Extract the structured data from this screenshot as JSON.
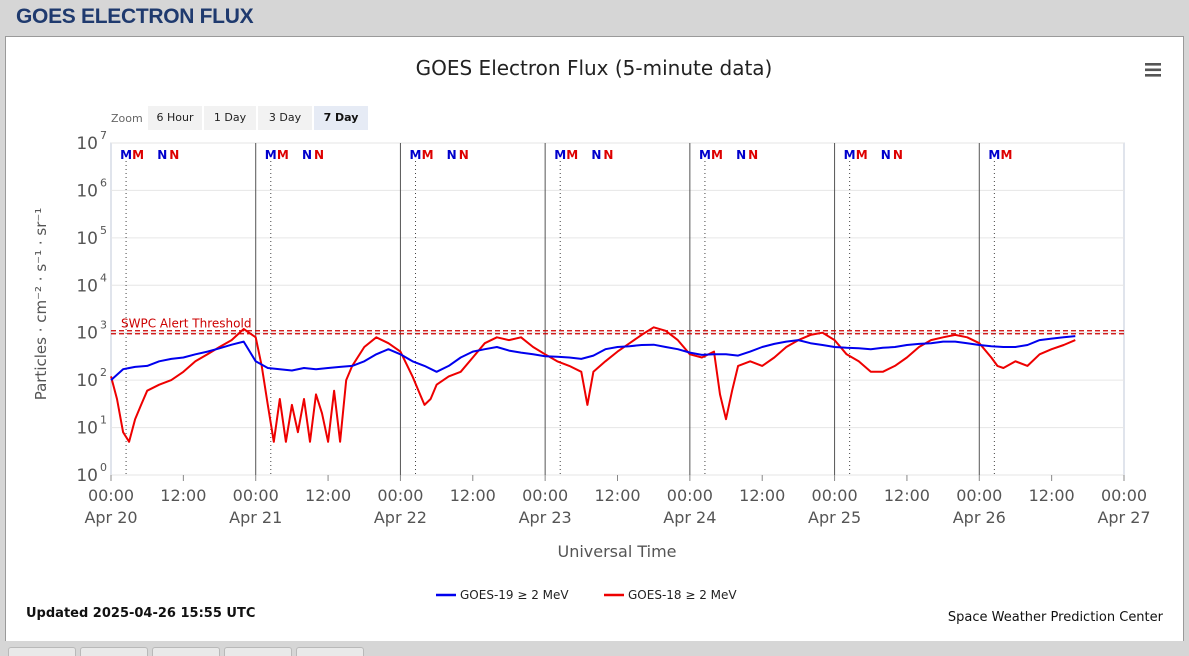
{
  "page": {
    "title": "GOES ELECTRON FLUX"
  },
  "chart_data": {
    "type": "line",
    "title": "GOES Electron Flux (5-minute data)",
    "xlabel": "Universal Time",
    "ylabel": "Particles · cm⁻² · s⁻¹ · sr⁻¹",
    "y_scale": "log",
    "ylim": [
      1,
      10000000
    ],
    "y_ticks": [
      {
        "value": 1,
        "mant": "10",
        "exp": "0"
      },
      {
        "value": 10,
        "mant": "10",
        "exp": "1"
      },
      {
        "value": 100,
        "mant": "10",
        "exp": "2"
      },
      {
        "value": 1000,
        "mant": "10",
        "exp": "3"
      },
      {
        "value": 10000,
        "mant": "10",
        "exp": "4"
      },
      {
        "value": 100000,
        "mant": "10",
        "exp": "5"
      },
      {
        "value": 1000000,
        "mant": "10",
        "exp": "6"
      },
      {
        "value": 10000000,
        "mant": "10",
        "exp": "7"
      }
    ],
    "xlim": [
      "2025-04-20 00:00",
      "2025-04-27 00:00"
    ],
    "x_ticks": [
      {
        "t": "2025-04-20 00:00",
        "time": "00:00",
        "date": "Apr 20"
      },
      {
        "t": "2025-04-20 12:00",
        "time": "12:00",
        "date": ""
      },
      {
        "t": "2025-04-21 00:00",
        "time": "00:00",
        "date": "Apr 21"
      },
      {
        "t": "2025-04-21 12:00",
        "time": "12:00",
        "date": ""
      },
      {
        "t": "2025-04-22 00:00",
        "time": "00:00",
        "date": "Apr 22"
      },
      {
        "t": "2025-04-22 12:00",
        "time": "12:00",
        "date": ""
      },
      {
        "t": "2025-04-23 00:00",
        "time": "00:00",
        "date": "Apr 23"
      },
      {
        "t": "2025-04-23 12:00",
        "time": "12:00",
        "date": ""
      },
      {
        "t": "2025-04-24 00:00",
        "time": "00:00",
        "date": "Apr 24"
      },
      {
        "t": "2025-04-24 12:00",
        "time": "12:00",
        "date": ""
      },
      {
        "t": "2025-04-25 00:00",
        "time": "00:00",
        "date": "Apr 25"
      },
      {
        "t": "2025-04-25 12:00",
        "time": "12:00",
        "date": ""
      },
      {
        "t": "2025-04-26 00:00",
        "time": "00:00",
        "date": "Apr 26"
      },
      {
        "t": "2025-04-26 12:00",
        "time": "12:00",
        "date": ""
      },
      {
        "t": "2025-04-27 00:00",
        "time": "00:00",
        "date": "Apr 27"
      }
    ],
    "grid": true,
    "legend_position": "bottom-center",
    "threshold": {
      "label": "SWPC Alert Threshold",
      "value": 1000,
      "color": "#cc0000"
    },
    "markers": [
      {
        "letter": "M",
        "t": "2025-04-20 02:30",
        "color": "#0000cc"
      },
      {
        "letter": "M",
        "t": "2025-04-20 04:30",
        "color": "#dd0000"
      },
      {
        "letter": "N",
        "t": "2025-04-20 08:30",
        "color": "#0000cc"
      },
      {
        "letter": "N",
        "t": "2025-04-20 10:30",
        "color": "#dd0000"
      },
      {
        "letter": "M",
        "t": "2025-04-21 02:30",
        "color": "#0000cc"
      },
      {
        "letter": "M",
        "t": "2025-04-21 04:30",
        "color": "#dd0000"
      },
      {
        "letter": "N",
        "t": "2025-04-21 08:30",
        "color": "#0000cc"
      },
      {
        "letter": "N",
        "t": "2025-04-21 10:30",
        "color": "#dd0000"
      },
      {
        "letter": "M",
        "t": "2025-04-22 02:30",
        "color": "#0000cc"
      },
      {
        "letter": "M",
        "t": "2025-04-22 04:30",
        "color": "#dd0000"
      },
      {
        "letter": "N",
        "t": "2025-04-22 08:30",
        "color": "#0000cc"
      },
      {
        "letter": "N",
        "t": "2025-04-22 10:30",
        "color": "#dd0000"
      },
      {
        "letter": "M",
        "t": "2025-04-23 02:30",
        "color": "#0000cc"
      },
      {
        "letter": "M",
        "t": "2025-04-23 04:30",
        "color": "#dd0000"
      },
      {
        "letter": "N",
        "t": "2025-04-23 08:30",
        "color": "#0000cc"
      },
      {
        "letter": "N",
        "t": "2025-04-23 10:30",
        "color": "#dd0000"
      },
      {
        "letter": "M",
        "t": "2025-04-24 02:30",
        "color": "#0000cc"
      },
      {
        "letter": "M",
        "t": "2025-04-24 04:30",
        "color": "#dd0000"
      },
      {
        "letter": "N",
        "t": "2025-04-24 08:30",
        "color": "#0000cc"
      },
      {
        "letter": "N",
        "t": "2025-04-24 10:30",
        "color": "#dd0000"
      },
      {
        "letter": "M",
        "t": "2025-04-25 02:30",
        "color": "#0000cc"
      },
      {
        "letter": "M",
        "t": "2025-04-25 04:30",
        "color": "#dd0000"
      },
      {
        "letter": "N",
        "t": "2025-04-25 08:30",
        "color": "#0000cc"
      },
      {
        "letter": "N",
        "t": "2025-04-25 10:30",
        "color": "#dd0000"
      },
      {
        "letter": "M",
        "t": "2025-04-26 02:30",
        "color": "#0000cc"
      },
      {
        "letter": "M",
        "t": "2025-04-26 04:30",
        "color": "#dd0000"
      }
    ],
    "series": [
      {
        "name": "GOES-19 ≥ 2 MeV",
        "color": "#0000ee",
        "points": [
          [
            "2025-04-20 00:00",
            100
          ],
          [
            "2025-04-20 02:00",
            170
          ],
          [
            "2025-04-20 04:00",
            190
          ],
          [
            "2025-04-20 06:00",
            200
          ],
          [
            "2025-04-20 08:00",
            250
          ],
          [
            "2025-04-20 10:00",
            280
          ],
          [
            "2025-04-20 12:00",
            300
          ],
          [
            "2025-04-20 14:00",
            350
          ],
          [
            "2025-04-20 16:00",
            400
          ],
          [
            "2025-04-20 18:00",
            470
          ],
          [
            "2025-04-20 20:00",
            560
          ],
          [
            "2025-04-20 22:00",
            650
          ],
          [
            "2025-04-21 00:00",
            250
          ],
          [
            "2025-04-21 02:00",
            180
          ],
          [
            "2025-04-21 04:00",
            170
          ],
          [
            "2025-04-21 06:00",
            160
          ],
          [
            "2025-04-21 08:00",
            180
          ],
          [
            "2025-04-21 10:00",
            170
          ],
          [
            "2025-04-21 12:00",
            180
          ],
          [
            "2025-04-21 14:00",
            190
          ],
          [
            "2025-04-21 16:00",
            200
          ],
          [
            "2025-04-21 18:00",
            250
          ],
          [
            "2025-04-21 20:00",
            350
          ],
          [
            "2025-04-21 22:00",
            450
          ],
          [
            "2025-04-22 00:00",
            350
          ],
          [
            "2025-04-22 02:00",
            250
          ],
          [
            "2025-04-22 04:00",
            200
          ],
          [
            "2025-04-22 06:00",
            150
          ],
          [
            "2025-04-22 08:00",
            200
          ],
          [
            "2025-04-22 10:00",
            300
          ],
          [
            "2025-04-22 12:00",
            400
          ],
          [
            "2025-04-22 14:00",
            450
          ],
          [
            "2025-04-22 16:00",
            500
          ],
          [
            "2025-04-22 18:00",
            420
          ],
          [
            "2025-04-22 20:00",
            380
          ],
          [
            "2025-04-22 22:00",
            350
          ],
          [
            "2025-04-23 00:00",
            320
          ],
          [
            "2025-04-23 02:00",
            310
          ],
          [
            "2025-04-23 04:00",
            300
          ],
          [
            "2025-04-23 06:00",
            280
          ],
          [
            "2025-04-23 08:00",
            330
          ],
          [
            "2025-04-23 10:00",
            450
          ],
          [
            "2025-04-23 12:00",
            500
          ],
          [
            "2025-04-23 14:00",
            520
          ],
          [
            "2025-04-23 16:00",
            550
          ],
          [
            "2025-04-23 18:00",
            560
          ],
          [
            "2025-04-23 20:00",
            500
          ],
          [
            "2025-04-23 22:00",
            450
          ],
          [
            "2025-04-24 00:00",
            380
          ],
          [
            "2025-04-24 02:00",
            340
          ],
          [
            "2025-04-24 04:00",
            350
          ],
          [
            "2025-04-24 06:00",
            350
          ],
          [
            "2025-04-24 08:00",
            330
          ],
          [
            "2025-04-24 10:00",
            400
          ],
          [
            "2025-04-24 12:00",
            500
          ],
          [
            "2025-04-24 14:00",
            580
          ],
          [
            "2025-04-24 16:00",
            650
          ],
          [
            "2025-04-24 18:00",
            700
          ],
          [
            "2025-04-24 20:00",
            600
          ],
          [
            "2025-04-24 22:00",
            550
          ],
          [
            "2025-04-25 00:00",
            500
          ],
          [
            "2025-04-25 02:00",
            480
          ],
          [
            "2025-04-25 04:00",
            470
          ],
          [
            "2025-04-25 06:00",
            450
          ],
          [
            "2025-04-25 08:00",
            480
          ],
          [
            "2025-04-25 10:00",
            500
          ],
          [
            "2025-04-25 12:00",
            550
          ],
          [
            "2025-04-25 14:00",
            580
          ],
          [
            "2025-04-25 16:00",
            600
          ],
          [
            "2025-04-25 18:00",
            650
          ],
          [
            "2025-04-25 20:00",
            650
          ],
          [
            "2025-04-25 22:00",
            600
          ],
          [
            "2025-04-26 00:00",
            550
          ],
          [
            "2025-04-26 02:00",
            520
          ],
          [
            "2025-04-26 04:00",
            500
          ],
          [
            "2025-04-26 06:00",
            500
          ],
          [
            "2025-04-26 08:00",
            550
          ],
          [
            "2025-04-26 10:00",
            700
          ],
          [
            "2025-04-26 12:00",
            750
          ],
          [
            "2025-04-26 14:00",
            800
          ],
          [
            "2025-04-26 15:55",
            850
          ]
        ]
      },
      {
        "name": "GOES-18 ≥ 2 MeV",
        "color": "#ee0000",
        "points": [
          [
            "2025-04-20 00:00",
            120
          ],
          [
            "2025-04-20 01:00",
            40
          ],
          [
            "2025-04-20 02:00",
            8
          ],
          [
            "2025-04-20 03:00",
            5
          ],
          [
            "2025-04-20 04:00",
            15
          ],
          [
            "2025-04-20 05:00",
            30
          ],
          [
            "2025-04-20 06:00",
            60
          ],
          [
            "2025-04-20 08:00",
            80
          ],
          [
            "2025-04-20 10:00",
            100
          ],
          [
            "2025-04-20 12:00",
            150
          ],
          [
            "2025-04-20 14:00",
            250
          ],
          [
            "2025-04-20 16:00",
            350
          ],
          [
            "2025-04-20 18:00",
            500
          ],
          [
            "2025-04-20 20:00",
            700
          ],
          [
            "2025-04-20 22:00",
            1200
          ],
          [
            "2025-04-21 00:00",
            800
          ],
          [
            "2025-04-21 01:00",
            200
          ],
          [
            "2025-04-21 02:00",
            30
          ],
          [
            "2025-04-21 03:00",
            5
          ],
          [
            "2025-04-21 04:00",
            40
          ],
          [
            "2025-04-21 05:00",
            5
          ],
          [
            "2025-04-21 06:00",
            30
          ],
          [
            "2025-04-21 07:00",
            8
          ],
          [
            "2025-04-21 08:00",
            40
          ],
          [
            "2025-04-21 09:00",
            5
          ],
          [
            "2025-04-21 10:00",
            50
          ],
          [
            "2025-04-21 11:00",
            20
          ],
          [
            "2025-04-21 12:00",
            5
          ],
          [
            "2025-04-21 13:00",
            60
          ],
          [
            "2025-04-21 14:00",
            5
          ],
          [
            "2025-04-21 15:00",
            100
          ],
          [
            "2025-04-21 16:00",
            200
          ],
          [
            "2025-04-21 18:00",
            500
          ],
          [
            "2025-04-21 20:00",
            800
          ],
          [
            "2025-04-21 22:00",
            600
          ],
          [
            "2025-04-22 00:00",
            400
          ],
          [
            "2025-04-22 02:00",
            120
          ],
          [
            "2025-04-22 03:00",
            60
          ],
          [
            "2025-04-22 04:00",
            30
          ],
          [
            "2025-04-22 05:00",
            40
          ],
          [
            "2025-04-22 06:00",
            80
          ],
          [
            "2025-04-22 08:00",
            120
          ],
          [
            "2025-04-22 10:00",
            150
          ],
          [
            "2025-04-22 12:00",
            300
          ],
          [
            "2025-04-22 14:00",
            600
          ],
          [
            "2025-04-22 16:00",
            800
          ],
          [
            "2025-04-22 18:00",
            700
          ],
          [
            "2025-04-22 20:00",
            800
          ],
          [
            "2025-04-22 22:00",
            500
          ],
          [
            "2025-04-23 00:00",
            350
          ],
          [
            "2025-04-23 02:00",
            250
          ],
          [
            "2025-04-23 04:00",
            200
          ],
          [
            "2025-04-23 06:00",
            150
          ],
          [
            "2025-04-23 07:00",
            30
          ],
          [
            "2025-04-23 08:00",
            150
          ],
          [
            "2025-04-23 10:00",
            250
          ],
          [
            "2025-04-23 12:00",
            400
          ],
          [
            "2025-04-23 14:00",
            600
          ],
          [
            "2025-04-23 16:00",
            900
          ],
          [
            "2025-04-23 18:00",
            1300
          ],
          [
            "2025-04-23 20:00",
            1100
          ],
          [
            "2025-04-23 22:00",
            700
          ],
          [
            "2025-04-24 00:00",
            350
          ],
          [
            "2025-04-24 02:00",
            300
          ],
          [
            "2025-04-24 04:00",
            400
          ],
          [
            "2025-04-24 05:00",
            50
          ],
          [
            "2025-04-24 06:00",
            15
          ],
          [
            "2025-04-24 07:00",
            60
          ],
          [
            "2025-04-24 08:00",
            200
          ],
          [
            "2025-04-24 10:00",
            250
          ],
          [
            "2025-04-24 12:00",
            200
          ],
          [
            "2025-04-24 14:00",
            300
          ],
          [
            "2025-04-24 16:00",
            500
          ],
          [
            "2025-04-24 18:00",
            700
          ],
          [
            "2025-04-24 20:00",
            900
          ],
          [
            "2025-04-24 22:00",
            1000
          ],
          [
            "2025-04-25 00:00",
            700
          ],
          [
            "2025-04-25 02:00",
            350
          ],
          [
            "2025-04-25 04:00",
            250
          ],
          [
            "2025-04-25 06:00",
            150
          ],
          [
            "2025-04-25 08:00",
            150
          ],
          [
            "2025-04-25 10:00",
            200
          ],
          [
            "2025-04-25 12:00",
            300
          ],
          [
            "2025-04-25 14:00",
            500
          ],
          [
            "2025-04-25 16:00",
            700
          ],
          [
            "2025-04-25 18:00",
            800
          ],
          [
            "2025-04-25 20:00",
            900
          ],
          [
            "2025-04-25 22:00",
            800
          ],
          [
            "2025-04-26 00:00",
            600
          ],
          [
            "2025-04-26 02:00",
            300
          ],
          [
            "2025-04-26 03:00",
            200
          ],
          [
            "2025-04-26 04:00",
            180
          ],
          [
            "2025-04-26 06:00",
            250
          ],
          [
            "2025-04-26 08:00",
            200
          ],
          [
            "2025-04-26 10:00",
            350
          ],
          [
            "2025-04-26 12:00",
            450
          ],
          [
            "2025-04-26 14:00",
            550
          ],
          [
            "2025-04-26 15:55",
            700
          ]
        ]
      }
    ]
  },
  "zoom": {
    "label": "Zoom",
    "buttons": [
      "6 Hour",
      "1 Day",
      "3 Day",
      "7 Day"
    ],
    "selected": "7 Day"
  },
  "menu_icon": "hamburger-menu-icon",
  "footer": {
    "updated": "Updated 2025-04-26 15:55 UTC",
    "credit": "Space Weather Prediction Center"
  }
}
